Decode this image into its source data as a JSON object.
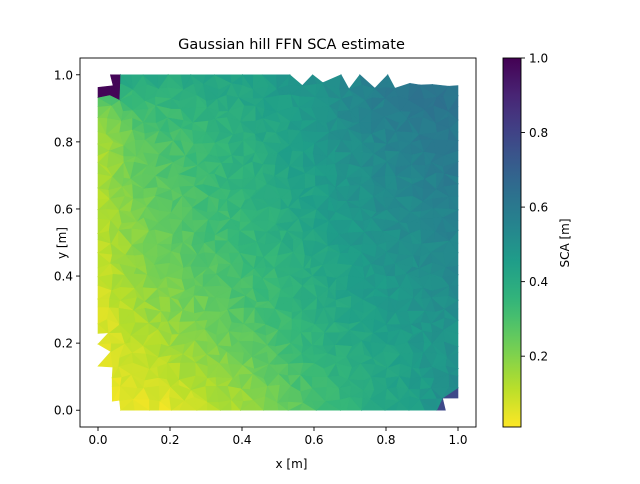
{
  "chart_data": {
    "type": "heatmap",
    "title": "Gaussian hill FFN SCA estimate",
    "xlabel": "x [m]",
    "ylabel": "y [m]",
    "xlim": [
      -0.05,
      1.05
    ],
    "ylim": [
      -0.05,
      1.05
    ],
    "x_ticks": [
      0.0,
      0.2,
      0.4,
      0.6,
      0.8,
      1.0
    ],
    "x_tick_labels": [
      "0.0",
      "0.2",
      "0.4",
      "0.6",
      "0.8",
      "1.0"
    ],
    "y_ticks": [
      0.0,
      0.2,
      0.4,
      0.6,
      0.8,
      1.0
    ],
    "y_tick_labels": [
      "0.0",
      "0.2",
      "0.4",
      "0.6",
      "0.8",
      "1.0"
    ],
    "grid": false,
    "colormap": "viridis_r",
    "colorbar": {
      "label": "SCA [m]",
      "range": [
        0.01,
        1.0
      ],
      "ticks": [
        0.2,
        0.4,
        0.6,
        0.8,
        1.0
      ],
      "tick_labels": [
        "0.2",
        "0.4",
        "0.6",
        "0.8",
        "1.0"
      ]
    },
    "domain_boundary": [
      [
        0.07,
        0.0
      ],
      [
        0.5,
        0.0
      ],
      [
        0.96,
        0.01
      ],
      [
        0.99,
        0.03
      ],
      [
        1.0,
        0.05
      ],
      [
        1.0,
        0.97
      ],
      [
        0.94,
        0.975
      ],
      [
        0.45,
        0.99
      ],
      [
        0.07,
        1.0
      ],
      [
        0.02,
        0.98
      ],
      [
        0.0,
        0.92
      ],
      [
        0.0,
        0.3
      ],
      [
        0.03,
        0.1
      ],
      [
        0.04,
        0.05
      ],
      [
        0.06,
        0.02
      ]
    ],
    "field": {
      "type": "grid",
      "x": [
        0.0,
        0.1,
        0.2,
        0.3,
        0.4,
        0.5,
        0.6,
        0.7,
        0.8,
        0.9,
        1.0
      ],
      "y": [
        0.0,
        0.1,
        0.2,
        0.3,
        0.4,
        0.5,
        0.6,
        0.7,
        0.8,
        0.9,
        1.0
      ],
      "values": [
        [
          0.02,
          0.03,
          0.05,
          0.09,
          0.14,
          0.22,
          0.3,
          0.36,
          0.41,
          0.45,
          0.58
        ],
        [
          0.04,
          0.07,
          0.1,
          0.15,
          0.2,
          0.27,
          0.33,
          0.38,
          0.42,
          0.46,
          0.52
        ],
        [
          0.05,
          0.1,
          0.15,
          0.2,
          0.25,
          0.3,
          0.36,
          0.4,
          0.43,
          0.47,
          0.5
        ],
        [
          0.06,
          0.14,
          0.19,
          0.24,
          0.29,
          0.33,
          0.38,
          0.42,
          0.46,
          0.49,
          0.51
        ],
        [
          0.08,
          0.17,
          0.22,
          0.27,
          0.31,
          0.35,
          0.4,
          0.44,
          0.48,
          0.51,
          0.53
        ],
        [
          0.1,
          0.19,
          0.25,
          0.3,
          0.34,
          0.37,
          0.42,
          0.46,
          0.5,
          0.52,
          0.55
        ],
        [
          0.12,
          0.21,
          0.27,
          0.31,
          0.35,
          0.39,
          0.44,
          0.48,
          0.52,
          0.54,
          0.57
        ],
        [
          0.13,
          0.24,
          0.29,
          0.33,
          0.37,
          0.41,
          0.45,
          0.49,
          0.53,
          0.56,
          0.59
        ],
        [
          0.14,
          0.25,
          0.3,
          0.34,
          0.38,
          0.42,
          0.47,
          0.51,
          0.55,
          0.58,
          0.6
        ],
        [
          0.2,
          0.31,
          0.34,
          0.37,
          0.4,
          0.44,
          0.48,
          0.53,
          0.57,
          0.6,
          0.62
        ],
        [
          0.5,
          0.42,
          0.4,
          0.42,
          0.44,
          0.47,
          0.51,
          0.55,
          0.59,
          0.62,
          0.64
        ]
      ]
    },
    "outliers": [
      {
        "x": 0.03,
        "y": 0.97,
        "value": 0.99
      },
      {
        "x": 0.98,
        "y": 0.02,
        "value": 0.78
      }
    ]
  }
}
